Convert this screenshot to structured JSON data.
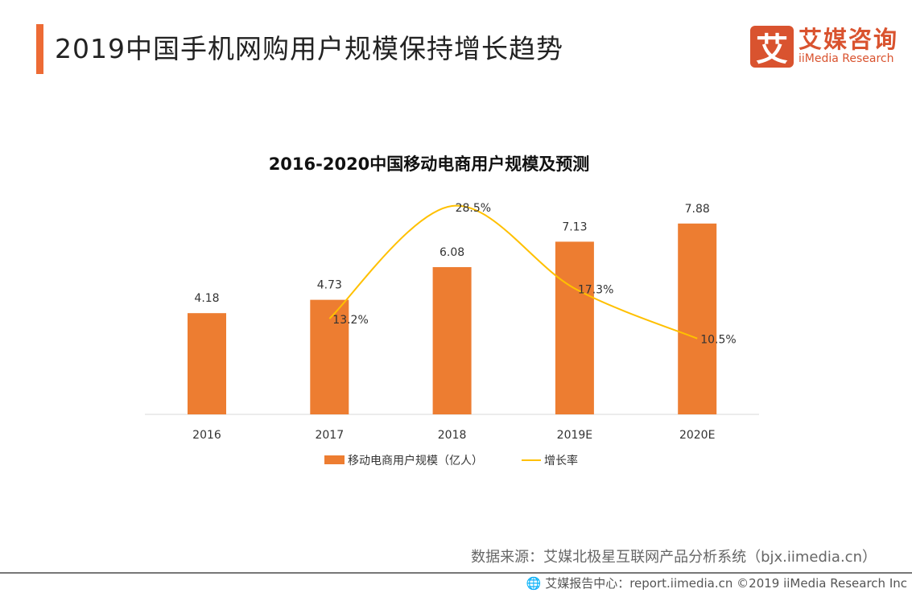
{
  "header": {
    "title": "2019中国手机网购用户规模保持增长趋势"
  },
  "logo": {
    "mark": "艾",
    "cn": "艾媒咨询",
    "en": "iiMedia Research"
  },
  "chart_data": {
    "type": "bar+line",
    "title": "2016-2020中国移动电商用户规模及预测",
    "categories": [
      "2016",
      "2017",
      "2018",
      "2019E",
      "2020E"
    ],
    "series": [
      {
        "name": "移动电商用户规模（亿人）",
        "type": "bar",
        "color": "#ed7d31",
        "values": [
          4.18,
          4.73,
          6.08,
          7.13,
          7.88
        ],
        "labels": [
          "4.18",
          "4.73",
          "6.08",
          "7.13",
          "7.88"
        ]
      },
      {
        "name": "增长率",
        "type": "line",
        "color": "#ffc000",
        "values": [
          null,
          13.2,
          28.5,
          17.3,
          10.5
        ],
        "labels": [
          "",
          "13.2%",
          "28.5%",
          "17.3%",
          "10.5%"
        ]
      }
    ],
    "legend": "bottom",
    "grid": false
  },
  "footer": {
    "source": "数据来源：艾媒北极星互联网产品分析系统（bjx.iimedia.cn）",
    "copyright": "艾媒报告中心：report.iimedia.cn  ©2019  iiMedia Research  Inc"
  }
}
